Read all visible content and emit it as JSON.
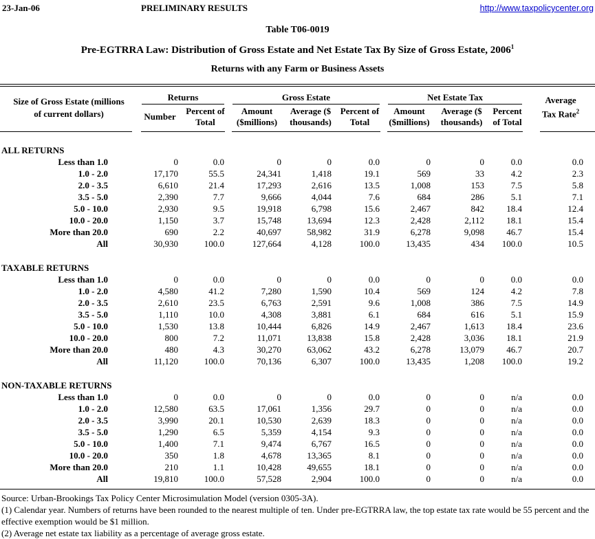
{
  "page_header": {
    "date": "23-Jan-06",
    "status": "PRELIMINARY RESULTS",
    "url": "http://www.taxpolicycenter.org"
  },
  "title": {
    "table_number": "Table T06-0019",
    "main": "Pre-EGTRRA Law: Distribution of Gross Estate and Net Estate Tax By Size of Gross Estate, 2006",
    "main_sup": "1",
    "subtitle": "Returns with any Farm or Business Assets"
  },
  "table": {
    "row_label_header": "Size of Gross Estate (millions of current dollars)",
    "group_returns": "Returns",
    "group_gross_estate": "Gross Estate",
    "group_net_estate_tax": "Net Estate Tax",
    "col_number": "Number",
    "col_percent_of_total": "Percent of Total",
    "col_amount_millions": "Amount ($millions)",
    "col_average_thousands": "Average ($ thousands)",
    "avg_rate_line1": "Average",
    "avg_rate_line2": "Tax Rate",
    "avg_rate_sup": "2",
    "sections": [
      {
        "label": "ALL RETURNS",
        "rows": [
          {
            "label": "Less than 1.0",
            "values": [
              "0",
              "0.0",
              "0",
              "0",
              "0.0",
              "0",
              "0",
              "0.0",
              "0.0"
            ]
          },
          {
            "label": "1.0 - 2.0",
            "values": [
              "17,170",
              "55.5",
              "24,341",
              "1,418",
              "19.1",
              "569",
              "33",
              "4.2",
              "2.3"
            ]
          },
          {
            "label": "2.0 - 3.5",
            "values": [
              "6,610",
              "21.4",
              "17,293",
              "2,616",
              "13.5",
              "1,008",
              "153",
              "7.5",
              "5.8"
            ]
          },
          {
            "label": "3.5 - 5.0",
            "values": [
              "2,390",
              "7.7",
              "9,666",
              "4,044",
              "7.6",
              "684",
              "286",
              "5.1",
              "7.1"
            ]
          },
          {
            "label": "5.0 - 10.0",
            "values": [
              "2,930",
              "9.5",
              "19,918",
              "6,798",
              "15.6",
              "2,467",
              "842",
              "18.4",
              "12.4"
            ]
          },
          {
            "label": "10.0 - 20.0",
            "values": [
              "1,150",
              "3.7",
              "15,748",
              "13,694",
              "12.3",
              "2,428",
              "2,112",
              "18.1",
              "15.4"
            ]
          },
          {
            "label": "More than 20.0",
            "values": [
              "690",
              "2.2",
              "40,697",
              "58,982",
              "31.9",
              "6,278",
              "9,098",
              "46.7",
              "15.4"
            ]
          },
          {
            "label": "All",
            "values": [
              "30,930",
              "100.0",
              "127,664",
              "4,128",
              "100.0",
              "13,435",
              "434",
              "100.0",
              "10.5"
            ]
          }
        ]
      },
      {
        "label": "TAXABLE RETURNS",
        "rows": [
          {
            "label": "Less than 1.0",
            "values": [
              "0",
              "0.0",
              "0",
              "0",
              "0.0",
              "0",
              "0",
              "0.0",
              "0.0"
            ]
          },
          {
            "label": "1.0 - 2.0",
            "values": [
              "4,580",
              "41.2",
              "7,280",
              "1,590",
              "10.4",
              "569",
              "124",
              "4.2",
              "7.8"
            ]
          },
          {
            "label": "2.0 - 3.5",
            "values": [
              "2,610",
              "23.5",
              "6,763",
              "2,591",
              "9.6",
              "1,008",
              "386",
              "7.5",
              "14.9"
            ]
          },
          {
            "label": "3.5 - 5.0",
            "values": [
              "1,110",
              "10.0",
              "4,308",
              "3,881",
              "6.1",
              "684",
              "616",
              "5.1",
              "15.9"
            ]
          },
          {
            "label": "5.0 - 10.0",
            "values": [
              "1,530",
              "13.8",
              "10,444",
              "6,826",
              "14.9",
              "2,467",
              "1,613",
              "18.4",
              "23.6"
            ]
          },
          {
            "label": "10.0 - 20.0",
            "values": [
              "800",
              "7.2",
              "11,071",
              "13,838",
              "15.8",
              "2,428",
              "3,036",
              "18.1",
              "21.9"
            ]
          },
          {
            "label": "More than 20.0",
            "values": [
              "480",
              "4.3",
              "30,270",
              "63,062",
              "43.2",
              "6,278",
              "13,079",
              "46.7",
              "20.7"
            ]
          },
          {
            "label": "All",
            "values": [
              "11,120",
              "100.0",
              "70,136",
              "6,307",
              "100.0",
              "13,435",
              "1,208",
              "100.0",
              "19.2"
            ]
          }
        ]
      },
      {
        "label": "NON-TAXABLE RETURNS",
        "rows": [
          {
            "label": "Less than 1.0",
            "values": [
              "0",
              "0.0",
              "0",
              "0",
              "0.0",
              "0",
              "0",
              "n/a",
              "0.0"
            ]
          },
          {
            "label": "1.0 - 2.0",
            "values": [
              "12,580",
              "63.5",
              "17,061",
              "1,356",
              "29.7",
              "0",
              "0",
              "n/a",
              "0.0"
            ]
          },
          {
            "label": "2.0 - 3.5",
            "values": [
              "3,990",
              "20.1",
              "10,530",
              "2,639",
              "18.3",
              "0",
              "0",
              "n/a",
              "0.0"
            ]
          },
          {
            "label": "3.5 - 5.0",
            "values": [
              "1,290",
              "6.5",
              "5,359",
              "4,154",
              "9.3",
              "0",
              "0",
              "n/a",
              "0.0"
            ]
          },
          {
            "label": "5.0 - 10.0",
            "values": [
              "1,400",
              "7.1",
              "9,474",
              "6,767",
              "16.5",
              "0",
              "0",
              "n/a",
              "0.0"
            ]
          },
          {
            "label": "10.0 - 20.0",
            "values": [
              "350",
              "1.8",
              "4,678",
              "13,365",
              "8.1",
              "0",
              "0",
              "n/a",
              "0.0"
            ]
          },
          {
            "label": "More than 20.0",
            "values": [
              "210",
              "1.1",
              "10,428",
              "49,655",
              "18.1",
              "0",
              "0",
              "n/a",
              "0.0"
            ]
          },
          {
            "label": "All",
            "values": [
              "19,810",
              "100.0",
              "57,528",
              "2,904",
              "100.0",
              "0",
              "0",
              "n/a",
              "0.0"
            ]
          }
        ]
      }
    ]
  },
  "footer": {
    "source": "Source: Urban-Brookings Tax Policy Center Microsimulation Model (version 0305-3A).",
    "note1": "(1) Calendar year. Numbers of returns have been rounded to the nearest multiple of ten. Under pre-EGTRRA law, the top estate tax rate would be 55 percent and the effective exemption would be $1 million.",
    "note2": "(2) Average net estate tax liability as a percentage of average gross estate."
  }
}
